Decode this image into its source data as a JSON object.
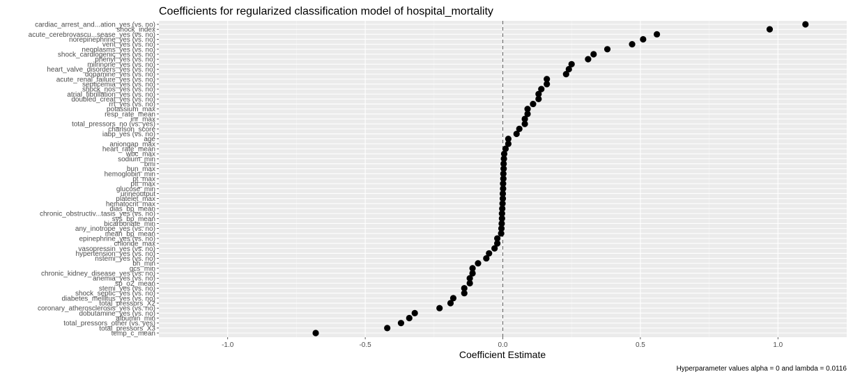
{
  "chart_data": {
    "type": "scatter",
    "title": "Coefficients for regularized classification model of hospital_mortality",
    "xlabel": "Coefficient Estimate",
    "ylabel": "",
    "caption": "Hyperparameter values alpha = 0 and lambda = 0.0116",
    "xlim": [
      -1.25,
      1.25
    ],
    "xticks": [
      -1.0,
      -0.5,
      0.0,
      0.5,
      1.0
    ],
    "xtick_labels": [
      "-1.0",
      "-0.5",
      "0.0",
      "0.5",
      "1.0"
    ],
    "reference_line": 0.0,
    "grid": true,
    "point_color": "#000000",
    "panel_color": "#ebebeb",
    "points": [
      {
        "label": "cardiac_arrest_and...ation_yes (vs. no)",
        "value": 1.1
      },
      {
        "label": "shock_index",
        "value": 0.97
      },
      {
        "label": "acute_cerebrovascu...sease_yes (vs. no)",
        "value": 0.56
      },
      {
        "label": "norepinephrine_yes (vs. no)",
        "value": 0.51
      },
      {
        "label": "vent_yes (vs. no)",
        "value": 0.47
      },
      {
        "label": "neoplasms_yes (vs. no)",
        "value": 0.38
      },
      {
        "label": "shock_cardiogenic_yes (vs. no)",
        "value": 0.33
      },
      {
        "label": "phenyl_yes (vs. no)",
        "value": 0.31
      },
      {
        "label": "milrinone_yes (vs. no)",
        "value": 0.25
      },
      {
        "label": "heart_valve_disorders_yes (vs. no)",
        "value": 0.24
      },
      {
        "label": "dopamine_yes (vs. no)",
        "value": 0.23
      },
      {
        "label": "acute_renal_failure_yes (vs. no)",
        "value": 0.16
      },
      {
        "label": "septicemia_yes (vs. no)",
        "value": 0.16
      },
      {
        "label": "shock_nos_yes (vs. no)",
        "value": 0.14
      },
      {
        "label": "atrial_fibrillation_yes (vs. no)",
        "value": 0.13
      },
      {
        "label": "doubled_creat_yes (vs. no)",
        "value": 0.13
      },
      {
        "label": "rrt_yes (vs. no)",
        "value": 0.11
      },
      {
        "label": "potassium_max",
        "value": 0.09
      },
      {
        "label": "resp_rate_mean",
        "value": 0.09
      },
      {
        "label": "inr_max",
        "value": 0.08
      },
      {
        "label": "total_pressors_no (vs. yes)",
        "value": 0.08
      },
      {
        "label": "charlson_score",
        "value": 0.06
      },
      {
        "label": "iabp_yes (vs. no)",
        "value": 0.05
      },
      {
        "label": "age",
        "value": 0.02
      },
      {
        "label": "aniongap_max",
        "value": 0.02
      },
      {
        "label": "heart_rate_mean",
        "value": 0.01
      },
      {
        "label": "wbc_max",
        "value": 0.005
      },
      {
        "label": "sodium_min",
        "value": 0.004
      },
      {
        "label": "bmi",
        "value": 0.003
      },
      {
        "label": "bun_max",
        "value": 0.003
      },
      {
        "label": "hemoglobin_min",
        "value": 0.002
      },
      {
        "label": "pt_max",
        "value": 0.002
      },
      {
        "label": "ptt_max",
        "value": 0.001
      },
      {
        "label": "glucose_min",
        "value": 0.001
      },
      {
        "label": "urineoutput",
        "value": 0.0
      },
      {
        "label": "platelet_max",
        "value": 0.0
      },
      {
        "label": "hematocrit_max",
        "value": -0.001
      },
      {
        "label": "dias_bp_mean",
        "value": -0.002
      },
      {
        "label": "chronic_obstructiv...tasis_yes (vs. no)",
        "value": -0.003
      },
      {
        "label": "sys_bp_mean",
        "value": -0.003
      },
      {
        "label": "bicarbonate_min",
        "value": -0.004
      },
      {
        "label": "any_inotrope_yes (vs. no)",
        "value": -0.005
      },
      {
        "label": "mean_bp_mean",
        "value": -0.006
      },
      {
        "label": "epinephrine_yes (vs. no)",
        "value": -0.02
      },
      {
        "label": "chloride_max",
        "value": -0.02
      },
      {
        "label": "vasopressin_yes (vs. no)",
        "value": -0.03
      },
      {
        "label": "hypertension_yes (vs. no)",
        "value": -0.05
      },
      {
        "label": "nstemi_yes (vs. no)",
        "value": -0.06
      },
      {
        "label": "bh_min",
        "value": -0.09
      },
      {
        "label": "gcs_min",
        "value": -0.11
      },
      {
        "label": "chronic_kidney_disease_yes (vs. no)",
        "value": -0.11
      },
      {
        "label": "anemia_yes (vs. no)",
        "value": -0.12
      },
      {
        "label": "sp_o2_mean",
        "value": -0.12
      },
      {
        "label": "stemi_yes (vs. no)",
        "value": -0.14
      },
      {
        "label": "shock_septic_yes (vs. no)",
        "value": -0.14
      },
      {
        "label": "diabetes_mellitus_yes (vs. no)",
        "value": -0.18
      },
      {
        "label": "total_pressors_X2",
        "value": -0.19
      },
      {
        "label": "coronary_atherosclerosis_yes (vs. no)",
        "value": -0.23
      },
      {
        "label": "dobutamine_yes (vs. no)",
        "value": -0.32
      },
      {
        "label": "albumin_min",
        "value": -0.34
      },
      {
        "label": "total_pressors_other (vs. yes)",
        "value": -0.37
      },
      {
        "label": "total_pressors_X3",
        "value": -0.42
      },
      {
        "label": "temp_c_mean",
        "value": -0.68
      }
    ]
  }
}
